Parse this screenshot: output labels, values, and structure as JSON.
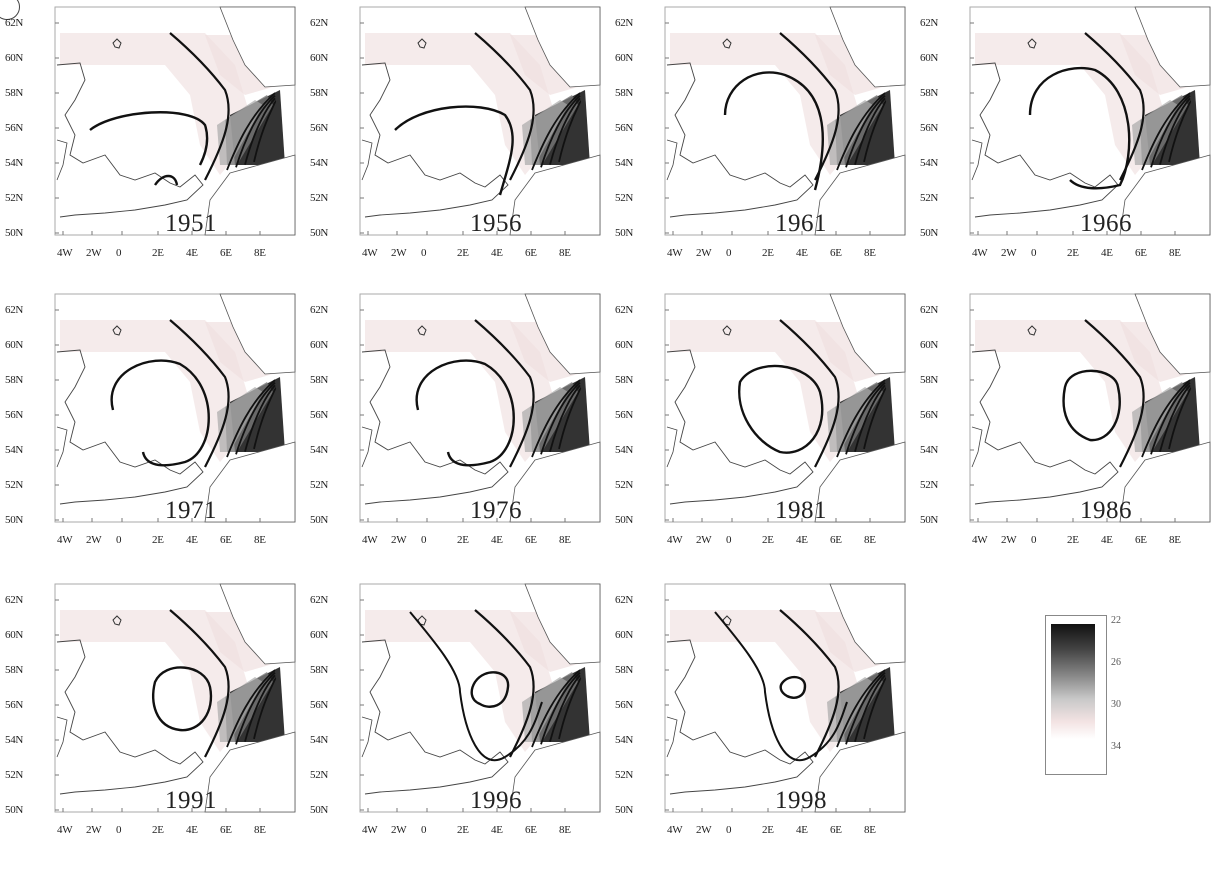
{
  "panels": [
    {
      "year": "1951"
    },
    {
      "year": "1956"
    },
    {
      "year": "1961"
    },
    {
      "year": "1966"
    },
    {
      "year": "1971"
    },
    {
      "year": "1976"
    },
    {
      "year": "1981"
    },
    {
      "year": "1986"
    },
    {
      "year": "1991"
    },
    {
      "year": "1996"
    },
    {
      "year": "1998"
    }
  ],
  "lat_labels": [
    "62N",
    "60N",
    "58N",
    "56N",
    "54N",
    "52N",
    "50N"
  ],
  "lon_labels": [
    "4W",
    "2W",
    "0",
    "2E",
    "4E",
    "6E",
    "8E"
  ],
  "colorbar": {
    "ticks": [
      "22",
      "26",
      "30",
      "34"
    ],
    "colors": {
      "high": "#111111",
      "mid": "#888888",
      "low": "#f3e3e3",
      "min": "#ffffff"
    }
  }
}
